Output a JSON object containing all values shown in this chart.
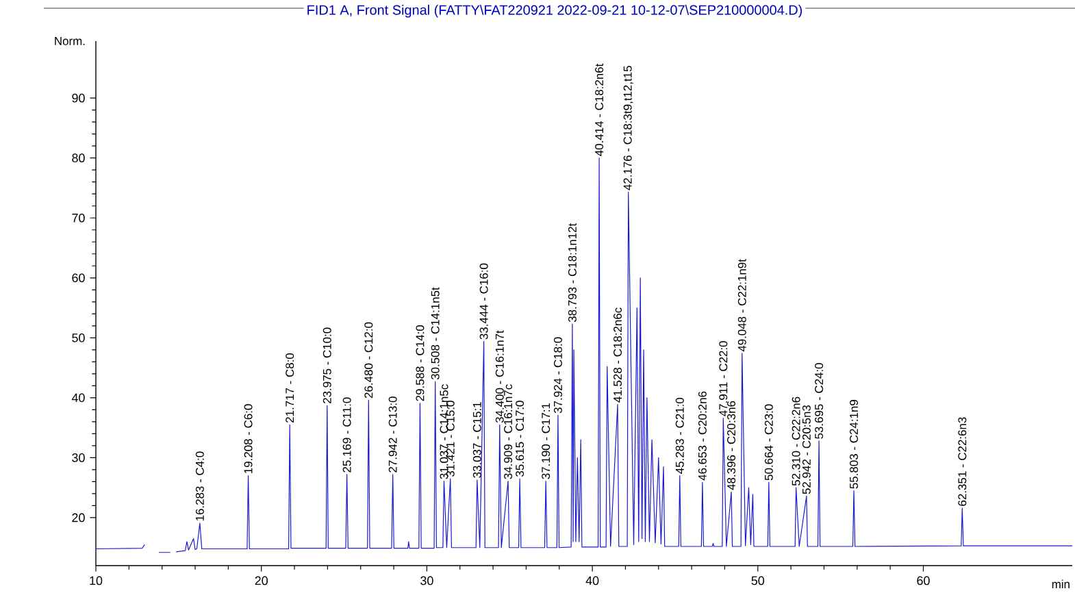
{
  "chart_data": {
    "type": "line",
    "title": "FID1 A, Front Signal (FATTY\\FAT220921 2022-09-21 10-12-07\\SEP210000004.D)",
    "ylabel": "Norm.",
    "xlabel": "min",
    "xlim": [
      10,
      69
    ],
    "ylim": [
      12,
      99.5
    ],
    "xticks": [
      10,
      20,
      30,
      40,
      50,
      60
    ],
    "yticks": [
      20,
      30,
      40,
      50,
      60,
      70,
      80,
      90
    ],
    "grid": false,
    "marker": "none",
    "line_style": "solid",
    "series": [
      {
        "color": "#1a1acc",
        "x": [
          10,
          12.8,
          12.95,
          13.05,
          13.2,
          13.45,
          13.65,
          13.8,
          14.5,
          14.6,
          14.75,
          14.85,
          15.4,
          15.5,
          15.6,
          15.9,
          16.0,
          16.1,
          16.283,
          16.4,
          19.14,
          19.208,
          19.28,
          21.65,
          21.717,
          21.79,
          23.91,
          23.975,
          24.04,
          25.1,
          25.169,
          25.24,
          26.41,
          26.48,
          26.55,
          27.87,
          27.942,
          28.01,
          28.85,
          28.9,
          28.95,
          29.52,
          29.588,
          29.66,
          30.44,
          30.508,
          30.58,
          30.97,
          31.037,
          31.2,
          31.421,
          31.49,
          32.97,
          33.037,
          33.2,
          33.444,
          33.51,
          34.33,
          34.4,
          34.5,
          34.909,
          34.98,
          35.55,
          35.615,
          35.69,
          37.12,
          37.19,
          37.26,
          37.86,
          37.924,
          37.99,
          38.72,
          38.793,
          38.84,
          38.883,
          39.0,
          39.1,
          39.2,
          39.3,
          39.37,
          40.35,
          40.414,
          40.48,
          40.83,
          40.896,
          41.1,
          41.528,
          41.6,
          42.11,
          42.176,
          42.5,
          42.7,
          42.8,
          42.9,
          43.0,
          43.1,
          43.2,
          43.3,
          43.45,
          43.6,
          43.8,
          44.0,
          44.15,
          44.3,
          44.37,
          45.22,
          45.283,
          45.35,
          46.59,
          46.653,
          46.72,
          47.25,
          47.3,
          47.35,
          47.85,
          47.911,
          48.1,
          48.396,
          48.46,
          48.98,
          49.048,
          49.25,
          49.45,
          49.57,
          49.696,
          49.76,
          50.6,
          50.664,
          50.73,
          52.25,
          52.31,
          52.5,
          52.942,
          53.0,
          53.63,
          53.695,
          53.76,
          55.74,
          55.803,
          55.87,
          62.29,
          62.351,
          62.42,
          69
        ],
        "values": [
          14.8,
          14.9,
          15.5,
          null,
          null,
          null,
          null,
          14.2,
          14.2,
          null,
          null,
          14.3,
          14.5,
          16.0,
          14.6,
          16.5,
          14.7,
          14.8,
          19.1,
          14.8,
          14.8,
          27.0,
          14.8,
          14.8,
          35.5,
          14.9,
          14.9,
          38.7,
          14.9,
          14.9,
          27.2,
          14.9,
          14.9,
          39.6,
          14.9,
          14.9,
          27.2,
          14.9,
          14.9,
          16.0,
          14.9,
          14.9,
          39.1,
          14.9,
          14.9,
          42.7,
          15.0,
          15.0,
          26.1,
          15.0,
          26.5,
          15.0,
          15.0,
          26.3,
          15.0,
          49.4,
          15.0,
          15.0,
          35.5,
          15.0,
          26.1,
          15.0,
          15.0,
          26.5,
          15.0,
          15.0,
          26.1,
          15.0,
          15.0,
          37.1,
          15.0,
          15.1,
          52.3,
          16.0,
          48.0,
          16.0,
          30.0,
          16.0,
          33.0,
          15.1,
          15.1,
          80.0,
          15.1,
          15.1,
          45.2,
          15.2,
          38.9,
          15.2,
          15.2,
          74.3,
          15.5,
          55.0,
          16.0,
          60.0,
          16.5,
          48.0,
          16.0,
          40.0,
          16.0,
          33.0,
          15.8,
          30.0,
          15.6,
          28.5,
          15.2,
          15.2,
          27.0,
          15.2,
          15.2,
          25.9,
          15.2,
          15.2,
          15.7,
          15.2,
          15.2,
          36.6,
          15.2,
          24.3,
          15.2,
          15.2,
          47.4,
          15.3,
          25.0,
          15.5,
          23.9,
          15.2,
          15.2,
          25.9,
          15.2,
          15.2,
          25.0,
          15.2,
          23.6,
          15.2,
          15.2,
          32.8,
          15.2,
          15.2,
          24.5,
          15.2,
          15.3,
          21.6,
          15.3,
          15.3
        ]
      }
    ],
    "annotations": [
      {
        "text": "16.283 - C4:0",
        "x": 16.283,
        "y": 19.1
      },
      {
        "text": "19.208 - C6:0",
        "x": 19.208,
        "y": 27.0
      },
      {
        "text": "21.717 - C8:0",
        "x": 21.717,
        "y": 35.5
      },
      {
        "text": "23.975 - C10:0",
        "x": 23.975,
        "y": 38.7
      },
      {
        "text": "25.169 - C11:0",
        "x": 25.169,
        "y": 27.2
      },
      {
        "text": "26.480 - C12:0",
        "x": 26.48,
        "y": 39.6
      },
      {
        "text": "27.942 - C13:0",
        "x": 27.942,
        "y": 27.2
      },
      {
        "text": "29.588 - C14:0",
        "x": 29.588,
        "y": 39.1
      },
      {
        "text": "30.508 - C14:1n5t",
        "x": 30.508,
        "y": 42.7
      },
      {
        "text": "31.037 - C14:1n5c",
        "x": 31.037,
        "y": 26.1
      },
      {
        "text": "31.421 - C15:0",
        "x": 31.421,
        "y": 26.5
      },
      {
        "text": "33.037 - C15:1",
        "x": 33.037,
        "y": 26.3
      },
      {
        "text": "33.444 - C16:0",
        "x": 33.444,
        "y": 49.4
      },
      {
        "text": "34.400 - C16:1n7t",
        "x": 34.4,
        "y": 35.5
      },
      {
        "text": "34.909 - C16:1n7c",
        "x": 34.909,
        "y": 26.1
      },
      {
        "text": "35.615 - C17:0",
        "x": 35.615,
        "y": 26.5
      },
      {
        "text": "37.190 - C17:1",
        "x": 37.19,
        "y": 26.1
      },
      {
        "text": "37.924 - C18:0",
        "x": 37.924,
        "y": 37.1
      },
      {
        "text": "38.793 - C18:1n12t",
        "x": 38.793,
        "y": 52.3
      },
      {
        "text": "40.414 - C18:2n6t",
        "x": 40.414,
        "y": 80.0
      },
      {
        "text": "41.528 - C18:2n6c",
        "x": 41.528,
        "y": 38.9
      },
      {
        "text": "42.176 - C18:3t9,t12,t15",
        "x": 42.176,
        "y": 74.3
      },
      {
        "text": "45.283 - C21:0",
        "x": 45.283,
        "y": 27.0
      },
      {
        "text": "46.653 - C20:2n6",
        "x": 46.653,
        "y": 25.9
      },
      {
        "text": "47.911 - C22:0",
        "x": 47.911,
        "y": 36.6
      },
      {
        "text": "48.396 - C20:3n6",
        "x": 48.396,
        "y": 24.3
      },
      {
        "text": "49.048 - C22:1n9t",
        "x": 49.048,
        "y": 47.4
      },
      {
        "text": "50.664 - C23:0",
        "x": 50.664,
        "y": 25.9
      },
      {
        "text": "52.310 - C22:2n6",
        "x": 52.31,
        "y": 25.0
      },
      {
        "text": "52.942 - C20:5n3",
        "x": 52.942,
        "y": 23.6
      },
      {
        "text": "53.695 - C24:0",
        "x": 53.695,
        "y": 32.8
      },
      {
        "text": "55.803 - C24:1n9",
        "x": 55.803,
        "y": 24.5
      },
      {
        "text": "62.351 - C22:6n3",
        "x": 62.351,
        "y": 21.6
      }
    ]
  }
}
